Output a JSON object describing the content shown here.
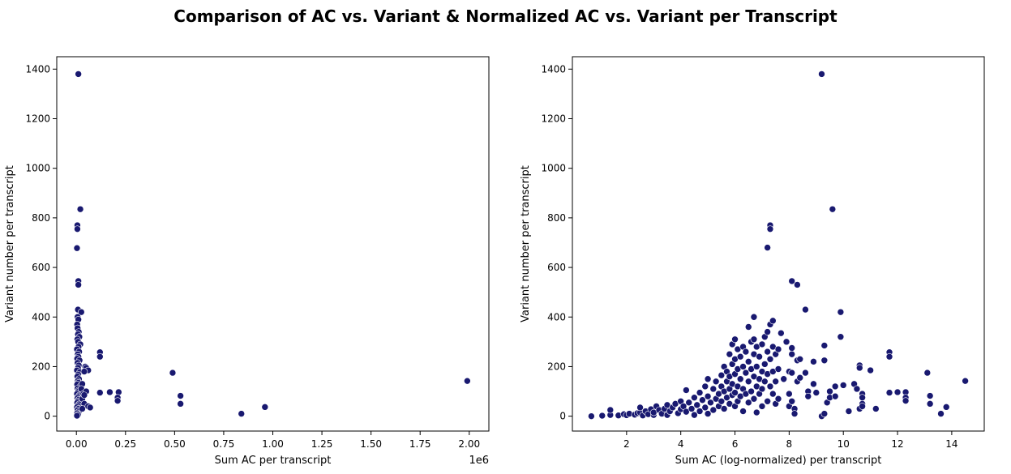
{
  "title": "Comparison of AC vs. Variant & Normalized AC vs. Variant per Transcript",
  "point_color": "#191970",
  "chart_data": [
    {
      "type": "scatter",
      "xlabel": "Sum AC per transcript",
      "ylabel": "Variant number per transcript",
      "x_offset_label": "1e6",
      "xlim": [
        -0.1,
        2.1
      ],
      "ylim": [
        -60,
        1450
      ],
      "xticks": [
        0.0,
        0.25,
        0.5,
        0.75,
        1.0,
        1.25,
        1.5,
        1.75,
        2.0
      ],
      "xtick_labels": [
        "0.00",
        "0.25",
        "0.50",
        "0.75",
        "1.00",
        "1.25",
        "1.50",
        "1.75",
        "2.00"
      ],
      "yticks": [
        0,
        200,
        400,
        600,
        800,
        1000,
        1200,
        1400
      ],
      "ytick_labels": [
        "0",
        "200",
        "400",
        "600",
        "800",
        "1000",
        "1200",
        "1400"
      ],
      "points": [
        [
          0.01,
          1380
        ],
        [
          0.02,
          835
        ],
        [
          0.005,
          770
        ],
        [
          0.005,
          755
        ],
        [
          0.003,
          678
        ],
        [
          0.01,
          545
        ],
        [
          0.01,
          530
        ],
        [
          0.008,
          430
        ],
        [
          0.025,
          420
        ],
        [
          0.006,
          400
        ],
        [
          0.01,
          390
        ],
        [
          0.004,
          370
        ],
        [
          0.006,
          355
        ],
        [
          0.012,
          340
        ],
        [
          0.008,
          330
        ],
        [
          0.015,
          320
        ],
        [
          0.005,
          310
        ],
        [
          0.009,
          300
        ],
        [
          0.02,
          290
        ],
        [
          0.011,
          280
        ],
        [
          0.003,
          270
        ],
        [
          0.014,
          260
        ],
        [
          0.007,
          250
        ],
        [
          0.01,
          240
        ],
        [
          0.004,
          232
        ],
        [
          0.016,
          225
        ],
        [
          0.006,
          215
        ],
        [
          0.012,
          205
        ],
        [
          0.008,
          195
        ],
        [
          0.003,
          185
        ],
        [
          0.018,
          178
        ],
        [
          0.009,
          168
        ],
        [
          0.005,
          160
        ],
        [
          0.013,
          150
        ],
        [
          0.007,
          142
        ],
        [
          0.01,
          135
        ],
        [
          0.004,
          128
        ],
        [
          0.02,
          120
        ],
        [
          0.006,
          112
        ],
        [
          0.012,
          105
        ],
        [
          0.008,
          98
        ],
        [
          0.003,
          90
        ],
        [
          0.015,
          84
        ],
        [
          0.009,
          78
        ],
        [
          0.005,
          72
        ],
        [
          0.011,
          66
        ],
        [
          0.007,
          60
        ],
        [
          0.004,
          54
        ],
        [
          0.013,
          48
        ],
        [
          0.008,
          42
        ],
        [
          0.003,
          36
        ],
        [
          0.01,
          30
        ],
        [
          0.006,
          24
        ],
        [
          0.012,
          18
        ],
        [
          0.004,
          12
        ],
        [
          0.008,
          6
        ],
        [
          0.003,
          2
        ],
        [
          0.03,
          130
        ],
        [
          0.025,
          110
        ],
        [
          0.035,
          90
        ],
        [
          0.03,
          70
        ],
        [
          0.04,
          50
        ],
        [
          0.03,
          30
        ],
        [
          0.045,
          200
        ],
        [
          0.05,
          195
        ],
        [
          0.06,
          185
        ],
        [
          0.04,
          180
        ],
        [
          0.05,
          100
        ],
        [
          0.04,
          85
        ],
        [
          0.06,
          40
        ],
        [
          0.07,
          35
        ],
        [
          0.12,
          258
        ],
        [
          0.12,
          240
        ],
        [
          0.12,
          95
        ],
        [
          0.17,
          97
        ],
        [
          0.215,
          97
        ],
        [
          0.21,
          75
        ],
        [
          0.21,
          62
        ],
        [
          0.49,
          175
        ],
        [
          0.53,
          82
        ],
        [
          0.53,
          50
        ],
        [
          0.84,
          10
        ],
        [
          0.96,
          37
        ],
        [
          1.99,
          142
        ]
      ]
    },
    {
      "type": "scatter",
      "xlabel": "Sum AC (log-normalized) per transcript",
      "ylabel": "Variant number per transcript",
      "xlim": [
        0.0,
        15.2
      ],
      "ylim": [
        -60,
        1450
      ],
      "xticks": [
        2,
        4,
        6,
        8,
        10,
        12,
        14
      ],
      "xtick_labels": [
        "2",
        "4",
        "6",
        "8",
        "10",
        "12",
        "14"
      ],
      "yticks": [
        0,
        200,
        400,
        600,
        800,
        1000,
        1200,
        1400
      ],
      "ytick_labels": [
        "0",
        "200",
        "400",
        "600",
        "800",
        "1000",
        "1200",
        "1400"
      ],
      "points": [
        [
          0.7,
          0
        ],
        [
          1.1,
          2
        ],
        [
          1.4,
          5
        ],
        [
          1.4,
          25
        ],
        [
          1.7,
          3
        ],
        [
          1.9,
          8
        ],
        [
          2.0,
          4
        ],
        [
          2.1,
          10
        ],
        [
          2.3,
          6
        ],
        [
          2.4,
          12
        ],
        [
          2.5,
          15
        ],
        [
          2.5,
          35
        ],
        [
          2.6,
          3
        ],
        [
          2.7,
          20
        ],
        [
          2.8,
          8
        ],
        [
          2.9,
          28
        ],
        [
          3.0,
          5
        ],
        [
          3.0,
          15
        ],
        [
          3.1,
          40
        ],
        [
          3.2,
          25
        ],
        [
          3.3,
          10
        ],
        [
          3.4,
          30
        ],
        [
          3.5,
          45
        ],
        [
          3.5,
          5
        ],
        [
          3.6,
          20
        ],
        [
          3.7,
          35
        ],
        [
          3.8,
          50
        ],
        [
          3.9,
          12
        ],
        [
          4.0,
          28
        ],
        [
          4.0,
          60
        ],
        [
          4.1,
          40
        ],
        [
          4.2,
          18
        ],
        [
          4.2,
          105
        ],
        [
          4.3,
          55
        ],
        [
          4.4,
          30
        ],
        [
          4.5,
          75
        ],
        [
          4.5,
          5
        ],
        [
          4.6,
          45
        ],
        [
          4.7,
          95
        ],
        [
          4.7,
          20
        ],
        [
          4.8,
          65
        ],
        [
          4.9,
          120
        ],
        [
          4.9,
          35
        ],
        [
          5.0,
          150
        ],
        [
          5.0,
          80
        ],
        [
          5.0,
          10
        ],
        [
          5.1,
          55
        ],
        [
          5.2,
          110
        ],
        [
          5.2,
          25
        ],
        [
          5.3,
          140
        ],
        [
          5.3,
          70
        ],
        [
          5.4,
          90
        ],
        [
          5.4,
          40
        ],
        [
          5.5,
          165
        ],
        [
          5.5,
          120
        ],
        [
          5.5,
          60
        ],
        [
          5.6,
          200
        ],
        [
          5.6,
          100
        ],
        [
          5.6,
          30
        ],
        [
          5.7,
          180
        ],
        [
          5.7,
          140
        ],
        [
          5.7,
          75
        ],
        [
          5.8,
          250
        ],
        [
          5.8,
          160
        ],
        [
          5.8,
          110
        ],
        [
          5.8,
          50
        ],
        [
          5.9,
          290
        ],
        [
          5.9,
          210
        ],
        [
          5.9,
          130
        ],
        [
          5.9,
          85
        ],
        [
          6.0,
          310
        ],
        [
          6.0,
          230
        ],
        [
          6.0,
          170
        ],
        [
          6.0,
          95
        ],
        [
          6.0,
          40
        ],
        [
          6.1,
          270
        ],
        [
          6.1,
          190
        ],
        [
          6.1,
          120
        ],
        [
          6.1,
          60
        ],
        [
          6.2,
          240
        ],
        [
          6.2,
          150
        ],
        [
          6.2,
          80
        ],
        [
          6.3,
          280
        ],
        [
          6.3,
          200
        ],
        [
          6.3,
          110
        ],
        [
          6.3,
          20
        ],
        [
          6.4,
          260
        ],
        [
          6.4,
          175
        ],
        [
          6.4,
          90
        ],
        [
          6.5,
          360
        ],
        [
          6.5,
          220
        ],
        [
          6.5,
          140
        ],
        [
          6.5,
          55
        ],
        [
          6.6,
          300
        ],
        [
          6.6,
          190
        ],
        [
          6.6,
          100
        ],
        [
          6.7,
          400
        ],
        [
          6.7,
          310
        ],
        [
          6.7,
          250
        ],
        [
          6.7,
          160
        ],
        [
          6.7,
          70
        ],
        [
          6.8,
          280
        ],
        [
          6.8,
          200
        ],
        [
          6.8,
          120
        ],
        [
          6.8,
          15
        ],
        [
          6.9,
          240
        ],
        [
          6.9,
          150
        ],
        [
          6.9,
          90
        ],
        [
          7.0,
          290
        ],
        [
          7.0,
          180
        ],
        [
          7.0,
          110
        ],
        [
          7.0,
          40
        ],
        [
          7.1,
          320
        ],
        [
          7.1,
          210
        ],
        [
          7.1,
          140
        ],
        [
          7.2,
          680
        ],
        [
          7.2,
          340
        ],
        [
          7.2,
          260
        ],
        [
          7.2,
          170
        ],
        [
          7.2,
          60
        ],
        [
          7.3,
          770
        ],
        [
          7.3,
          755
        ],
        [
          7.3,
          370
        ],
        [
          7.3,
          230
        ],
        [
          7.3,
          120
        ],
        [
          7.4,
          385
        ],
        [
          7.4,
          280
        ],
        [
          7.4,
          180
        ],
        [
          7.4,
          90
        ],
        [
          7.5,
          250
        ],
        [
          7.5,
          140
        ],
        [
          7.5,
          50
        ],
        [
          7.6,
          270
        ],
        [
          7.6,
          190
        ],
        [
          7.6,
          70
        ],
        [
          7.7,
          335
        ],
        [
          7.8,
          150
        ],
        [
          7.9,
          300
        ],
        [
          8.0,
          180
        ],
        [
          8.0,
          90
        ],
        [
          8.0,
          40
        ],
        [
          8.1,
          545
        ],
        [
          8.1,
          275
        ],
        [
          8.1,
          250
        ],
        [
          8.1,
          175
        ],
        [
          8.1,
          60
        ],
        [
          8.2,
          30
        ],
        [
          8.2,
          10
        ],
        [
          8.3,
          530
        ],
        [
          8.3,
          225
        ],
        [
          8.3,
          140
        ],
        [
          8.4,
          230
        ],
        [
          8.4,
          155
        ],
        [
          8.6,
          430
        ],
        [
          8.6,
          175
        ],
        [
          8.7,
          100
        ],
        [
          8.7,
          80
        ],
        [
          8.9,
          220
        ],
        [
          8.9,
          130
        ],
        [
          9.0,
          95
        ],
        [
          9.2,
          1380
        ],
        [
          9.2,
          0
        ],
        [
          9.3,
          225
        ],
        [
          9.3,
          285
        ],
        [
          9.3,
          10
        ],
        [
          9.4,
          55
        ],
        [
          9.5,
          100
        ],
        [
          9.5,
          75
        ],
        [
          9.6,
          835
        ],
        [
          9.7,
          120
        ],
        [
          9.7,
          80
        ],
        [
          9.9,
          320
        ],
        [
          9.9,
          420
        ],
        [
          10.0,
          125
        ],
        [
          10.2,
          20
        ],
        [
          10.4,
          130
        ],
        [
          10.5,
          110
        ],
        [
          10.6,
          205
        ],
        [
          10.6,
          195
        ],
        [
          10.6,
          30
        ],
        [
          10.7,
          90
        ],
        [
          10.7,
          75
        ],
        [
          10.7,
          50
        ],
        [
          10.7,
          40
        ],
        [
          11.0,
          185
        ],
        [
          11.2,
          30
        ],
        [
          11.7,
          258
        ],
        [
          11.7,
          240
        ],
        [
          11.7,
          95
        ],
        [
          12.0,
          97
        ],
        [
          12.3,
          97
        ],
        [
          12.3,
          75
        ],
        [
          12.3,
          62
        ],
        [
          13.1,
          175
        ],
        [
          13.2,
          82
        ],
        [
          13.2,
          50
        ],
        [
          13.6,
          10
        ],
        [
          13.8,
          37
        ],
        [
          14.5,
          142
        ]
      ]
    }
  ]
}
